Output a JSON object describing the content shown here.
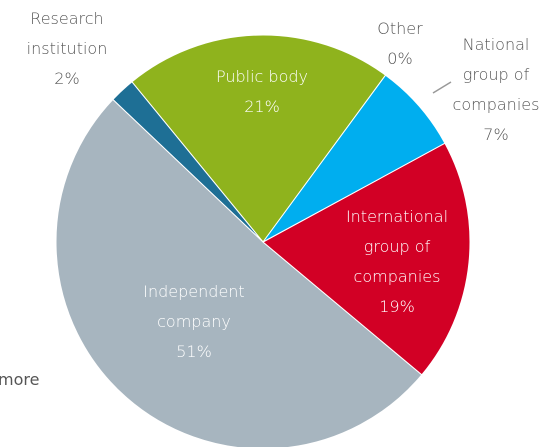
{
  "chart_data": {
    "type": "pie",
    "categories": [
      "Other",
      "National group of companies",
      "International group of companies",
      "Independent company",
      "Research institution",
      "Public body"
    ],
    "values": [
      0,
      7,
      19,
      51,
      2,
      21
    ],
    "value_labels": [
      "0%",
      "7%",
      "19%",
      "51%",
      "2%",
      "21%"
    ],
    "colors": [
      "#1e6f95",
      "#00aeef",
      "#d20025",
      "#a7b5bf",
      "#1e6f95",
      "#8fb31d"
    ],
    "annotations": [
      "more"
    ]
  }
}
